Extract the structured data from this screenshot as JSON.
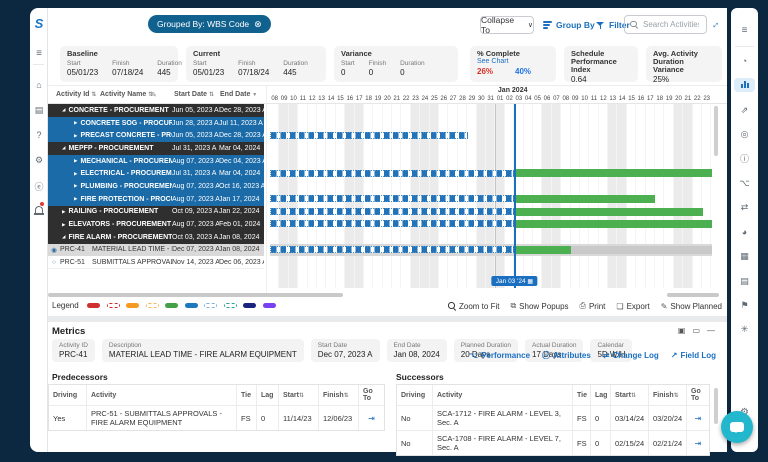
{
  "colors": {
    "accent_blue": "#1b6fc0",
    "pill_blue": "#11618f",
    "row_dark": "#2f2f2f",
    "row_blue": "#1b6ba8",
    "bar_green": "#4caf50",
    "bar_gray": "#c9c9c9",
    "bar_blue": "#2373b8",
    "selected_row": "#d9d9d9",
    "data_date": "#1a6fc0",
    "frame": "#0c2740",
    "fab": "#23b7cd",
    "pct_planned": "#d93025",
    "pct_actual": "#1a73e8"
  },
  "icons": {
    "close": "⊗",
    "chevron": "∨",
    "sort": "⇅",
    "sort_desc": "▼",
    "edit": "✎",
    "calendar": "▦",
    "goto": "⇥",
    "menu": "≡",
    "window_restore": "▣",
    "window_max": "▭",
    "window_min": "―",
    "tab_performance": "⌥",
    "tab_attributes": "ⓘ",
    "tab_changelog": "⇄",
    "tab_fieldlog": "↗"
  },
  "left_rail": {
    "logo": "S",
    "menu": "≡",
    "items": [
      {
        "name": "home",
        "glyph": "⌂"
      },
      {
        "name": "documents",
        "glyph": "▤"
      },
      {
        "name": "help",
        "glyph": "?"
      },
      {
        "name": "settings",
        "glyph": "⚙"
      },
      {
        "name": "explore",
        "glyph": "ⓔ"
      },
      {
        "name": "notifications",
        "glyph": "bell",
        "badge": true
      }
    ]
  },
  "right_rail": {
    "menu": "≡",
    "gear": "⚙",
    "items": [
      {
        "name": "dashboard",
        "glyph": "◔"
      },
      {
        "name": "gantt-view",
        "glyph": "bars",
        "active": true
      },
      {
        "name": "trend",
        "glyph": "⇗"
      },
      {
        "name": "target",
        "glyph": "◎"
      },
      {
        "name": "info",
        "glyph": "ⓘ"
      },
      {
        "name": "hierarchy",
        "glyph": "⌥"
      },
      {
        "name": "compare",
        "glyph": "⇄"
      },
      {
        "name": "pie",
        "glyph": "◕"
      },
      {
        "name": "grid",
        "glyph": "▦"
      },
      {
        "name": "clipboard",
        "glyph": "▤"
      },
      {
        "name": "flag",
        "glyph": "⚑"
      },
      {
        "name": "burst",
        "glyph": "✳"
      }
    ]
  },
  "top_bar": {
    "grouped_by": "Grouped By: WBS Code",
    "collapse_to": "Collapse To",
    "group_by": "Group By",
    "filter": "Filter",
    "search_placeholder": "Search Activities"
  },
  "summary": {
    "baseline": {
      "title": "Baseline",
      "cols": [
        {
          "label": "Start",
          "value": "05/01/23"
        },
        {
          "label": "Finish",
          "value": "07/18/24"
        },
        {
          "label": "Duration",
          "value": "445"
        }
      ]
    },
    "current": {
      "title": "Current",
      "cols": [
        {
          "label": "Start",
          "value": "05/01/23"
        },
        {
          "label": "Finish",
          "value": "07/18/24"
        },
        {
          "label": "Duration",
          "value": "445"
        }
      ]
    },
    "variance": {
      "title": "Variance",
      "cols": [
        {
          "label": "Start",
          "value": "0"
        },
        {
          "label": "Finish",
          "value": "0"
        },
        {
          "label": "Duration",
          "value": "0"
        }
      ]
    },
    "pct": {
      "title": "% Complete",
      "link": "See Chart",
      "planned": "26%",
      "actual": "40%"
    },
    "spi": {
      "title": "Schedule",
      "subtitle": "Performance Index",
      "value": "0.64"
    },
    "avg": {
      "title": "Avg. Activity",
      "subtitle": "Duration Variance",
      "value": "25%"
    }
  },
  "grid": {
    "headers": {
      "id": "Activity Id",
      "name": "Activity Name",
      "start": "Start Date",
      "end": "End Date"
    },
    "rows": [
      {
        "type": "wbs1",
        "expanded": true,
        "name": "CONCRETE - PROCUREMENT",
        "start": "Jun 05, 2023 A",
        "end": "Dec 28, 2023 A",
        "bars": []
      },
      {
        "type": "wbs2",
        "expanded": false,
        "name": "CONCRETE SOG - PROCUREMENT",
        "start": "Jun 28, 2023 A",
        "end": "Jul 11, 2023 A",
        "bars": []
      },
      {
        "type": "wbs2",
        "expanded": false,
        "name": "PRECAST CONCRETE - PROCUREMENT",
        "start": "Jun 05, 2023 A",
        "end": "Dec 28, 2023 A",
        "bars": [
          {
            "kind": "dashed",
            "from": 0,
            "to": 44.7
          }
        ]
      },
      {
        "type": "wbs1",
        "expanded": true,
        "name": "MEPFP - PROCUREMENT",
        "start": "Jul 31, 2023 A",
        "end": "Mar 04, 2024",
        "bars": []
      },
      {
        "type": "wbs2",
        "expanded": false,
        "name": "MECHANICAL - PROCUREMENT",
        "start": "Aug 07, 2023 A",
        "end": "Dec 04, 2023 A",
        "bars": []
      },
      {
        "type": "wbs2",
        "expanded": false,
        "name": "ELECTRICAL - PROCUREMENT",
        "start": "Jul 31, 2023 A",
        "end": "Mar 04, 2024",
        "bars": [
          {
            "kind": "dashed",
            "from": 0,
            "to": 55.3
          },
          {
            "kind": "green",
            "from": 55.3,
            "to": 100
          }
        ]
      },
      {
        "type": "wbs2",
        "expanded": false,
        "name": "PLUMBING - PROCUREMENT",
        "start": "Aug 07, 2023 A",
        "end": "Oct 16, 2023 A",
        "bars": []
      },
      {
        "type": "wbs2",
        "expanded": false,
        "name": "FIRE PROTECTION - PROCUREMENT",
        "start": "Aug 07, 2023 A",
        "end": "Jan 17, 2024",
        "bars": [
          {
            "kind": "dashed",
            "from": 0,
            "to": 55.3
          },
          {
            "kind": "green",
            "from": 55.3,
            "to": 87.2
          }
        ]
      },
      {
        "type": "wbs1",
        "expanded": false,
        "name": "RAILING - PROCUREMENT",
        "start": "Oct 09, 2023 A",
        "end": "Jan 22, 2024",
        "bars": [
          {
            "kind": "dashed",
            "from": 0,
            "to": 55.3
          },
          {
            "kind": "green",
            "from": 55.3,
            "to": 97.9
          }
        ]
      },
      {
        "type": "wbs1",
        "expanded": false,
        "name": "ELEVATORS - PROCUREMENT",
        "start": "Aug 07, 2023 A",
        "end": "Feb 01, 2024",
        "bars": [
          {
            "kind": "dashed",
            "from": 0,
            "to": 55.3
          },
          {
            "kind": "green",
            "from": 55.3,
            "to": 100
          }
        ]
      },
      {
        "type": "wbs1",
        "expanded": true,
        "name": "FIRE ALARM - PROCUREMENT",
        "start": "Oct 03, 2023 A",
        "end": "Jan 08, 2024",
        "bars": []
      },
      {
        "type": "activity",
        "selected": true,
        "id": "PRC-41",
        "name": "MATERIAL LEAD TIME - FIRE ALARM EQUIPMENT",
        "start": "Dec 07, 2023 A",
        "end": "Jan 08, 2024",
        "bars": [
          {
            "kind": "dashed",
            "from": 0,
            "to": 55.3
          },
          {
            "kind": "gray",
            "from": 55.3,
            "to": 100
          },
          {
            "kind": "green",
            "from": 55.3,
            "to": 68.1
          }
        ]
      },
      {
        "type": "activity",
        "selected": false,
        "id": "PRC-51",
        "name": "SUBMITTALS APPROVALS",
        "start": "Nov 14, 2023 A",
        "end": "Dec 06, 2023 A",
        "bars": []
      }
    ]
  },
  "gantt": {
    "month_label": "Jan 2024",
    "month_start_index": 24,
    "data_date_label": "Jan 03 '24",
    "data_date_pct": 55.3,
    "days": [
      "08",
      "09*",
      "10*",
      "11",
      "12",
      "13",
      "14",
      "15",
      "16*",
      "17*",
      "18",
      "19",
      "20",
      "21",
      "22",
      "23*",
      "24*",
      "25*",
      "26",
      "27",
      "28",
      "29",
      "30*",
      "31*",
      "01*",
      "02",
      "03",
      "04",
      "05",
      "06*",
      "07*",
      "08",
      "09",
      "10",
      "11",
      "12",
      "13*",
      "14*",
      "15",
      "16",
      "17",
      "18",
      "19",
      "20*",
      "21*",
      "22",
      "23"
    ]
  },
  "legend": {
    "label": "Legend",
    "swatches": [
      {
        "name": "solid-red",
        "style": "solid",
        "color": "#cf2f2f"
      },
      {
        "name": "dashed-red",
        "style": "dashed",
        "color": "#cf2f2f"
      },
      {
        "name": "solid-orange",
        "style": "solid",
        "color": "#f59a23"
      },
      {
        "name": "dashed-orange",
        "style": "dashed",
        "color": "#f5b85c"
      },
      {
        "name": "solid-green",
        "style": "solid",
        "color": "#43a047"
      },
      {
        "name": "solid-blue",
        "style": "solid",
        "color": "#1e78bc"
      },
      {
        "name": "dashed-blue",
        "style": "dashed",
        "color": "#7db4e0"
      },
      {
        "name": "dashed-teal",
        "style": "dashed",
        "color": "#2aa198"
      },
      {
        "name": "solid-navy",
        "style": "solid",
        "color": "#1a237e"
      },
      {
        "name": "solid-purple",
        "style": "solid",
        "color": "#7b3ff2"
      }
    ]
  },
  "gantt_controls": [
    {
      "name": "zoom-to-fit",
      "icon": "mag",
      "label": "Zoom to Fit"
    },
    {
      "name": "show-popups",
      "icon": "⧉",
      "label": "Show Popups"
    },
    {
      "name": "print",
      "icon": "⎙",
      "label": "Print"
    },
    {
      "name": "export",
      "icon": "❏",
      "label": "Export"
    },
    {
      "name": "show-planned",
      "icon": "✎",
      "label": "Show Planned"
    }
  ],
  "metrics": {
    "title": "Metrics",
    "fields": [
      {
        "label": "Activity ID",
        "value": "PRC-41"
      },
      {
        "label": "Description",
        "value": "MATERIAL LEAD TIME - FIRE ALARM EQUIPMENT"
      },
      {
        "label": "Start Date",
        "value": "Dec 07, 2023 A"
      },
      {
        "label": "End Date",
        "value": "Jan 08, 2024"
      },
      {
        "label": "Planned Duration",
        "value": "20 Days"
      },
      {
        "label": "Actual Duration",
        "value": "17 Days"
      },
      {
        "label": "Calendar",
        "value": "5D W/H"
      }
    ],
    "tabs": [
      {
        "name": "performance",
        "icon": "tab_performance",
        "label": "Performance"
      },
      {
        "name": "attributes",
        "icon": "tab_attributes",
        "label": "Attributes"
      },
      {
        "name": "change-log",
        "icon": "tab_changelog",
        "label": "Change Log"
      },
      {
        "name": "field-log",
        "icon": "tab_fieldlog",
        "label": "Field Log"
      }
    ]
  },
  "predecessors": {
    "title": "Predecessors",
    "headers": [
      {
        "label": "Driving"
      },
      {
        "label": "Activity"
      },
      {
        "label": "Tie"
      },
      {
        "label": "Lag"
      },
      {
        "label": "Start",
        "sort": true
      },
      {
        "label": "Finish",
        "sort": true
      },
      {
        "label": "Go To"
      }
    ],
    "rows": [
      {
        "driving": "Yes",
        "activity": "PRC-51 - SUBMITTALS APPROVALS - FIRE ALARM EQUIPMENT",
        "tie": "FS",
        "lag": "0",
        "start": "11/14/23",
        "finish": "12/06/23"
      }
    ]
  },
  "successors": {
    "title": "Successors",
    "headers": [
      {
        "label": "Driving"
      },
      {
        "label": "Activity"
      },
      {
        "label": "Tie"
      },
      {
        "label": "Lag"
      },
      {
        "label": "Start",
        "sort": true
      },
      {
        "label": "Finish",
        "sort": true
      },
      {
        "label": "Go To"
      }
    ],
    "rows": [
      {
        "driving": "No",
        "activity": "SCA-1712 - FIRE ALARM - LEVEL 3, Sec. A",
        "tie": "FS",
        "lag": "0",
        "start": "03/14/24",
        "finish": "03/20/24"
      },
      {
        "driving": "No",
        "activity": "SCA-1708 - FIRE ALARM - LEVEL 7, Sec. A",
        "tie": "FS",
        "lag": "0",
        "start": "02/15/24",
        "finish": "02/21/24"
      }
    ]
  }
}
